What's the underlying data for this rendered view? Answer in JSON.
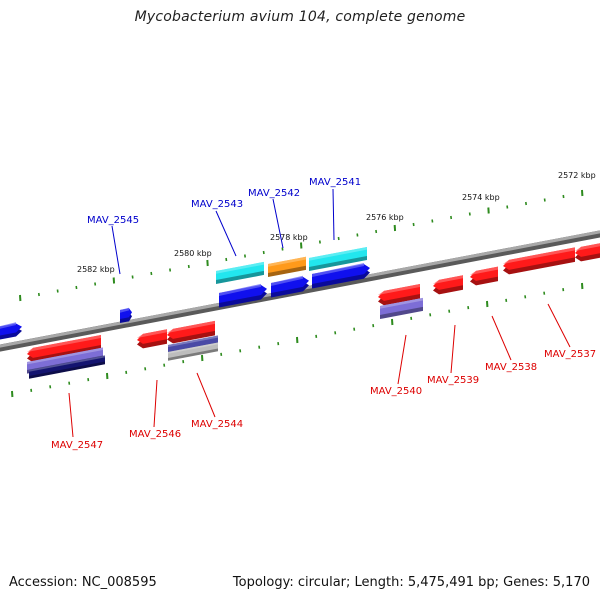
{
  "title": "Mycobacterium avium 104, complete genome",
  "footer": {
    "accession": "Accession: NC_008595",
    "summary": "Topology: circular; Length: 5,475,491 bp; Genes: 5,170"
  },
  "colors": {
    "backbone": "#8a8a8a",
    "tick": "#2e8b1e",
    "forward_label": "#0000cc",
    "reverse_label": "#dd0000",
    "red": "#ff1a1a",
    "cyan": "#22e6ee",
    "orange": "#ff9a1a",
    "blue": "#1010ee",
    "lavender": "#7d6ed6",
    "navy": "#141470"
  },
  "scale_labels": [
    "2582 kbp",
    "2580 kbp",
    "2578 kbp",
    "2576 kbp",
    "2574 kbp",
    "2572 kbp"
  ],
  "genes_forward": [
    {
      "label": "MAV_2545"
    },
    {
      "label": "MAV_2543"
    },
    {
      "label": "MAV_2542"
    },
    {
      "label": "MAV_2541"
    }
  ],
  "genes_reverse": [
    {
      "label": "MAV_2547"
    },
    {
      "label": "MAV_2546"
    },
    {
      "label": "MAV_2544"
    },
    {
      "label": "MAV_2540"
    },
    {
      "label": "MAV_2539"
    },
    {
      "label": "MAV_2538"
    },
    {
      "label": "MAV_2537"
    }
  ]
}
